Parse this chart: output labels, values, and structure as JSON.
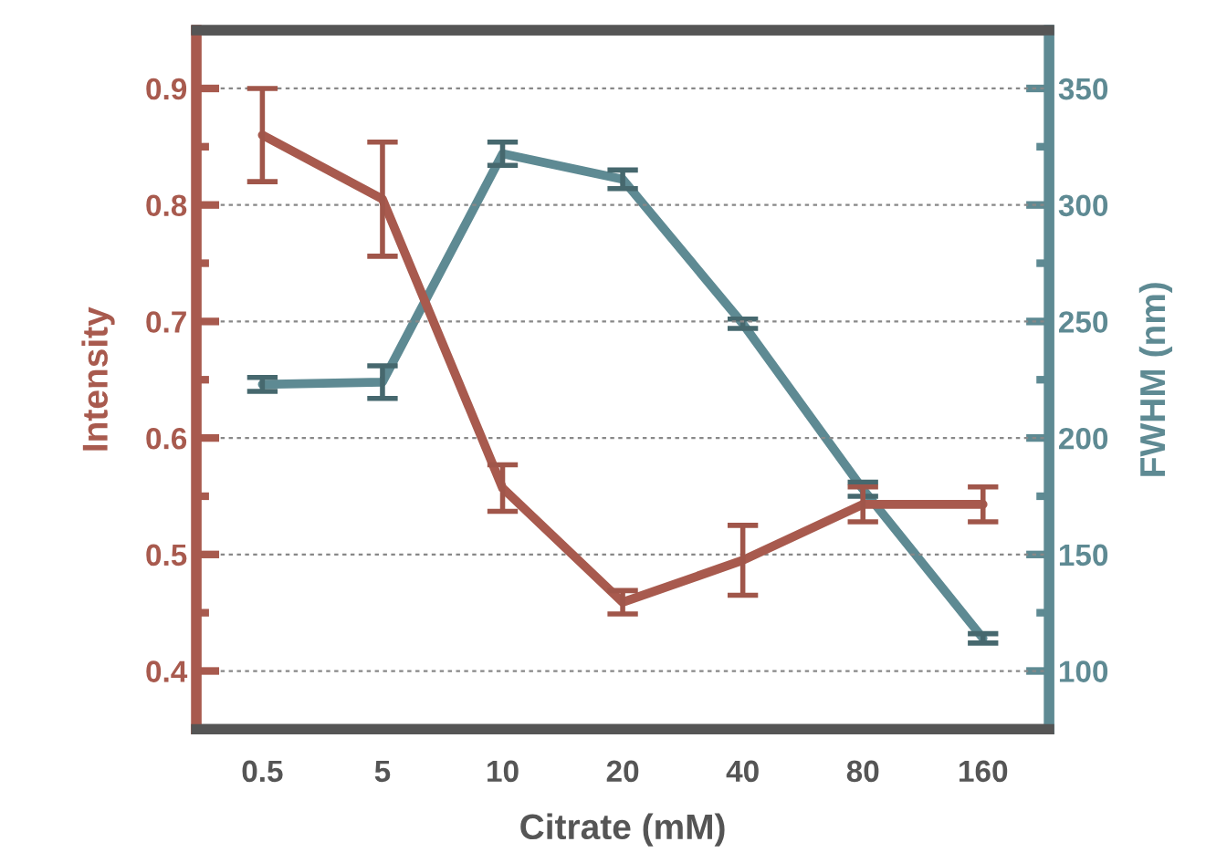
{
  "chart_data": {
    "type": "line",
    "xlabel": "Citrate (mM)",
    "ylabel": "Intensity",
    "y2label": "FWHM (nm)",
    "categories": [
      "0.5",
      "5",
      "10",
      "20",
      "40",
      "80",
      "160"
    ],
    "series": [
      {
        "color": "#a85a4e",
        "values": [
          0.86,
          0.805,
          0.557,
          0.459,
          0.495,
          0.543,
          0.543
        ],
        "errors": [
          0.04,
          0.049,
          0.02,
          0.01,
          0.03,
          0.015,
          0.015
        ]
      },
      {
        "color": "#5e8a93",
        "axis": "y2",
        "values": [
          223,
          224,
          322,
          311,
          249,
          178,
          114
        ],
        "errors": [
          3,
          7,
          5,
          4,
          2,
          3,
          2
        ]
      }
    ],
    "ylim": [
      0.35,
      0.95
    ],
    "yticks": [
      0.4,
      0.5,
      0.6,
      0.7,
      0.8,
      0.9
    ],
    "y2lim": [
      75,
      375
    ],
    "y2ticks": [
      100,
      150,
      200,
      250,
      300,
      350
    ],
    "grid": "y",
    "legend": false,
    "marker": "none",
    "line_style": "solid"
  }
}
